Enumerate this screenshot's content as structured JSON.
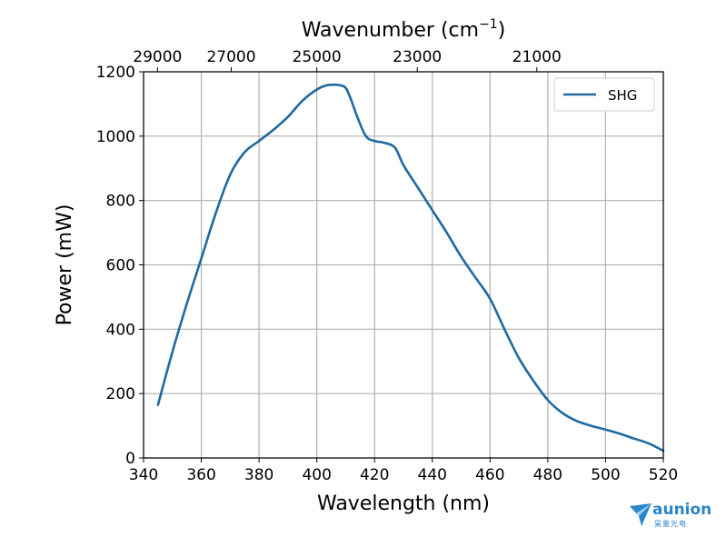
{
  "chart_data": {
    "type": "line",
    "xlabel": "Wavelength (nm)",
    "ylabel": "Power (mW)",
    "top_xlabel_main": "Wavenumber (cm",
    "top_xlabel_sup": "−1",
    "top_xlabel_close": ")",
    "xlim": [
      340,
      520
    ],
    "ylim": [
      0,
      1200
    ],
    "xticks": [
      340,
      360,
      380,
      400,
      420,
      440,
      460,
      480,
      500,
      520
    ],
    "yticks": [
      0,
      200,
      400,
      600,
      800,
      1000,
      1200
    ],
    "top_ticks": [
      29000,
      27000,
      25000,
      23000,
      21000
    ],
    "grid": true,
    "legend_position": "top-right",
    "series": [
      {
        "name": "SHG",
        "color": "#1f6aa0",
        "x": [
          345,
          350,
          355,
          360,
          365,
          370,
          375,
          380,
          385,
          390,
          395,
          400,
          403,
          406,
          408,
          410,
          412,
          414,
          417,
          420,
          423,
          427,
          430,
          435,
          440,
          445,
          450,
          455,
          460,
          465,
          470,
          475,
          480,
          485,
          490,
          495,
          500,
          505,
          510,
          515,
          520
        ],
        "y": [
          165,
          330,
          480,
          620,
          760,
          880,
          950,
          985,
          1020,
          1060,
          1110,
          1145,
          1157,
          1160,
          1158,
          1150,
          1110,
          1060,
          1000,
          985,
          980,
          965,
          910,
          840,
          770,
          700,
          625,
          560,
          495,
          400,
          310,
          240,
          180,
          140,
          115,
          100,
          88,
          75,
          60,
          45,
          22
        ]
      }
    ]
  },
  "brand": {
    "name": "aunion",
    "sub": "昊量光电"
  }
}
